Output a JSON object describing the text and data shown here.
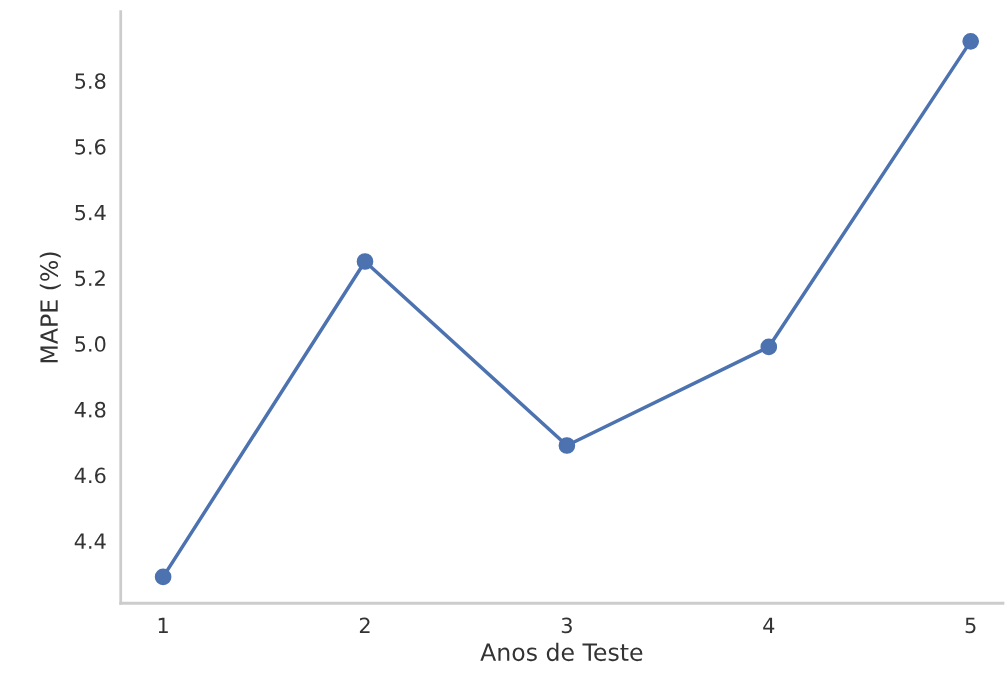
{
  "chart_data": {
    "type": "line",
    "xlabel": "Anos de Teste",
    "ylabel": "MAPE (%)",
    "x": [
      1,
      2,
      3,
      4,
      5
    ],
    "series": [
      {
        "color": "#4c72b0",
        "values": [
          4.29,
          5.25,
          4.69,
          4.99,
          5.92
        ]
      }
    ],
    "xlim": [
      0.79,
      5.16
    ],
    "xticks": [
      1,
      2,
      3,
      4,
      5
    ],
    "ylim": [
      4.21,
      6.01
    ],
    "yticks": [
      4.4,
      4.6,
      4.8,
      {
        "value": 5.0,
        "label": "5.0"
      },
      5.2,
      5.4,
      5.6,
      5.8
    ],
    "grid": false,
    "marker": "circle",
    "line_style": "solid"
  }
}
